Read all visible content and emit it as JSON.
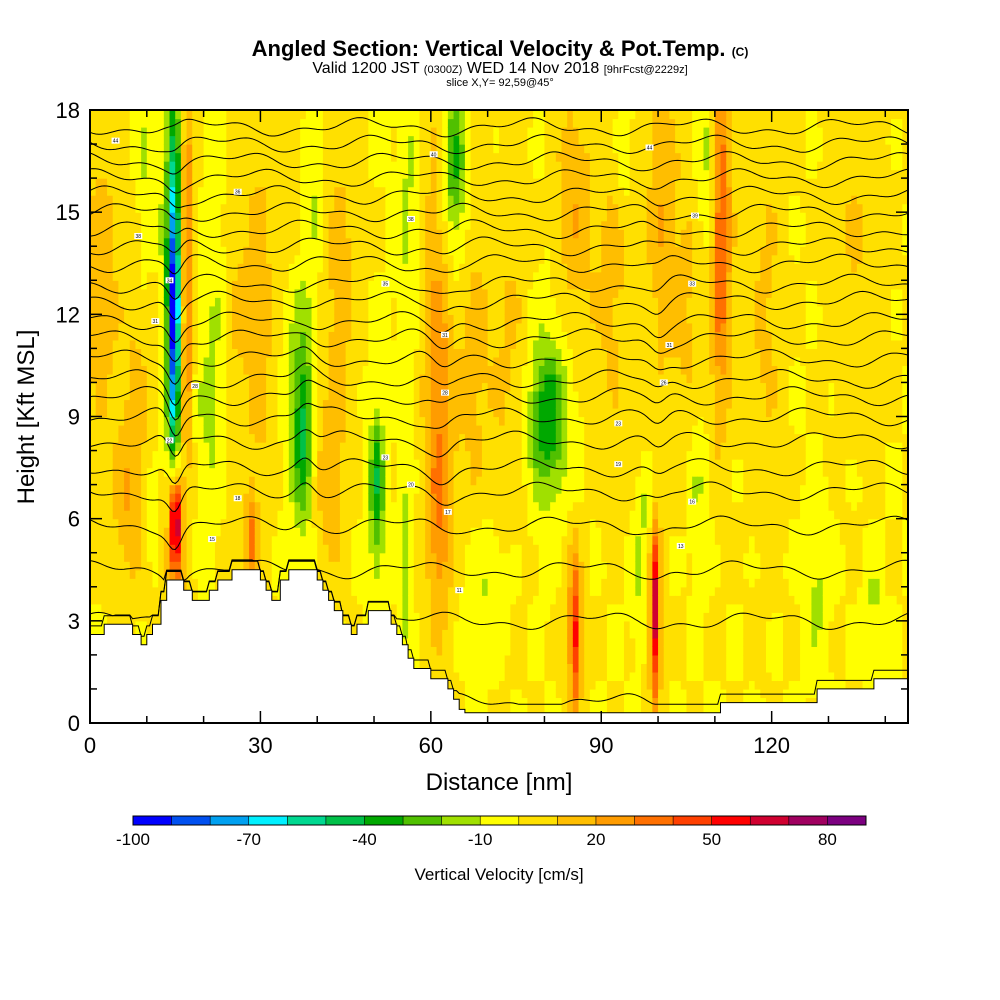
{
  "title": {
    "main": "Angled Section: Vertical Velocity & Pot.Temp.",
    "main_unit": "(C)",
    "valid_prefix": "Valid 1200 JST",
    "valid_utc": "(0300Z)",
    "valid_date": "WED 14 Nov 2018",
    "valid_fcst": "[9hrFcst@2229z]",
    "slice": "slice X,Y= 92,59@45°"
  },
  "chart_data": {
    "type": "heatmap",
    "xlabel": "Distance [nm]",
    "ylabel": "Height [Kft MSL]",
    "xlim": [
      0,
      144
    ],
    "ylim": [
      0,
      18
    ],
    "x_ticks": [
      0,
      30,
      60,
      90,
      120
    ],
    "y_ticks": [
      0,
      3,
      6,
      9,
      12,
      15,
      18
    ],
    "x_tick_labels": [
      "0",
      "30",
      "60",
      "90",
      "120"
    ],
    "y_tick_labels": [
      "0",
      "3",
      "6",
      "9",
      "12",
      "15",
      "18"
    ],
    "colorbar": {
      "title": "Vertical Velocity [cm/s]",
      "levels": [
        -100,
        -90,
        -80,
        -70,
        -60,
        -50,
        -40,
        -30,
        -20,
        -10,
        0,
        10,
        20,
        30,
        40,
        50,
        60,
        70,
        80,
        90
      ],
      "labels": [
        "-100",
        "-70",
        "-40",
        "-10",
        "20",
        "50",
        "80"
      ],
      "label_values": [
        -100,
        -70,
        -40,
        -10,
        20,
        50,
        80
      ],
      "colors": [
        "#0000ff",
        "#0050f0",
        "#00a0f0",
        "#00f0ff",
        "#00d890",
        "#00c048",
        "#00a800",
        "#50c000",
        "#a0e000",
        "#ffff00",
        "#ffe000",
        "#ffbe00",
        "#ff9c00",
        "#ff7000",
        "#ff4000",
        "#ff0000",
        "#d00030",
        "#a00060",
        "#7c0080"
      ]
    },
    "background_value": 0,
    "velocity_features": [
      {
        "x": 15,
        "z": 6,
        "rx": 0.7,
        "rz": 1.2,
        "v": 55
      },
      {
        "x": 15,
        "z": 6,
        "rx": 1.2,
        "rz": 2.2,
        "v": 35
      },
      {
        "x": 15,
        "z": 5,
        "rx": 2.5,
        "rz": 2.8,
        "v": 18
      },
      {
        "x": 14.8,
        "z": 12,
        "rx": 0.8,
        "rz": 4.5,
        "v": -60
      },
      {
        "x": 14.8,
        "z": 12.5,
        "rx": 1.6,
        "rz": 6,
        "v": -35
      },
      {
        "x": 14.5,
        "z": 13,
        "rx": 2.5,
        "rz": 7,
        "v": -12
      },
      {
        "x": 17,
        "z": 15,
        "rx": 1.3,
        "rz": 4,
        "v": 35
      },
      {
        "x": 17,
        "z": 10,
        "rx": 1.2,
        "rz": 3,
        "v": 25
      },
      {
        "x": 7,
        "z": 6.5,
        "rx": 3,
        "rz": 2.5,
        "v": 18
      },
      {
        "x": 2,
        "z": 13,
        "rx": 3,
        "rz": 5,
        "v": 16
      },
      {
        "x": 9,
        "z": 11,
        "rx": 3,
        "rz": 4,
        "v": 14
      },
      {
        "x": 9.5,
        "z": 15,
        "rx": 1.5,
        "rz": 5,
        "v": -12
      },
      {
        "x": 11,
        "z": 6.5,
        "rx": 1.3,
        "rz": 1.8,
        "v": -12
      },
      {
        "x": 23,
        "z": 13,
        "rx": 2.5,
        "rz": 5,
        "v": -12
      },
      {
        "x": 21,
        "z": 9,
        "rx": 3,
        "rz": 3.5,
        "v": -10
      },
      {
        "x": 25,
        "z": 12,
        "rx": 3,
        "rz": 6,
        "v": 14
      },
      {
        "x": 28.5,
        "z": 5.3,
        "rx": 1,
        "rz": 1.3,
        "v": 32
      },
      {
        "x": 30,
        "z": 12,
        "rx": 2.5,
        "rz": 6,
        "v": 15
      },
      {
        "x": 37.5,
        "z": 8.6,
        "rx": 1.6,
        "rz": 2.3,
        "v": -30
      },
      {
        "x": 37,
        "z": 10,
        "rx": 2.5,
        "rz": 5,
        "v": -15
      },
      {
        "x": 39,
        "z": 16,
        "rx": 2,
        "rz": 3,
        "v": -12
      },
      {
        "x": 36,
        "z": 16,
        "rx": 2.5,
        "rz": 3,
        "v": 14
      },
      {
        "x": 42,
        "z": 7,
        "rx": 2.5,
        "rz": 3,
        "v": 15
      },
      {
        "x": 44,
        "z": 13,
        "rx": 3,
        "rz": 5,
        "v": 14
      },
      {
        "x": 50.5,
        "z": 7.2,
        "rx": 1.2,
        "rz": 2,
        "v": -28
      },
      {
        "x": 50.5,
        "z": 6,
        "rx": 1.8,
        "rz": 3,
        "v": -12
      },
      {
        "x": 55.5,
        "z": 4.5,
        "rx": 1,
        "rz": 3,
        "v": -18
      },
      {
        "x": 56,
        "z": 15,
        "rx": 2,
        "rz": 5,
        "v": -12
      },
      {
        "x": 61.5,
        "z": 11.5,
        "rx": 3,
        "rz": 7,
        "v": 26
      },
      {
        "x": 61.5,
        "z": 6,
        "rx": 2,
        "rz": 3,
        "v": 18
      },
      {
        "x": 64,
        "z": 16.5,
        "rx": 2,
        "rz": 2.5,
        "v": -28
      },
      {
        "x": 64,
        "z": 15,
        "rx": 3,
        "rz": 4,
        "v": -12
      },
      {
        "x": 67.5,
        "z": 11,
        "rx": 3,
        "rz": 5,
        "v": 14
      },
      {
        "x": 70,
        "z": 4,
        "rx": 4,
        "rz": 2,
        "v": -12
      },
      {
        "x": 74,
        "z": 10.5,
        "rx": 3.5,
        "rz": 6,
        "v": 12
      },
      {
        "x": 80.5,
        "z": 9,
        "rx": 3,
        "rz": 2,
        "v": -28
      },
      {
        "x": 81,
        "z": 9,
        "rx": 5,
        "rz": 3.5,
        "v": -12
      },
      {
        "x": 85.5,
        "z": 2.5,
        "rx": 0.8,
        "rz": 2,
        "v": 38
      },
      {
        "x": 85,
        "z": 3,
        "rx": 1.8,
        "rz": 3,
        "v": 18
      },
      {
        "x": 85,
        "z": 15,
        "rx": 3,
        "rz": 4,
        "v": 18
      },
      {
        "x": 92,
        "z": 13,
        "rx": 4,
        "rz": 5,
        "v": 13
      },
      {
        "x": 94,
        "z": 17,
        "rx": 1.5,
        "rz": 2,
        "v": -12
      },
      {
        "x": 99.5,
        "z": 3.2,
        "rx": 0.7,
        "rz": 2.4,
        "v": 48
      },
      {
        "x": 99.5,
        "z": 3.5,
        "rx": 1.5,
        "rz": 3.2,
        "v": 20
      },
      {
        "x": 100.5,
        "z": 15,
        "rx": 2.5,
        "rz": 5,
        "v": 18
      },
      {
        "x": 98,
        "z": 6.5,
        "rx": 1.6,
        "rz": 1.2,
        "v": -12
      },
      {
        "x": 97,
        "z": 4,
        "rx": 1.5,
        "rz": 2,
        "v": -12
      },
      {
        "x": 107,
        "z": 7,
        "rx": 2,
        "rz": 2.5,
        "v": -12
      },
      {
        "x": 109,
        "z": 16.5,
        "rx": 2,
        "rz": 3,
        "v": -20
      },
      {
        "x": 111,
        "z": 15,
        "rx": 1.5,
        "rz": 5,
        "v": 30
      },
      {
        "x": 111,
        "z": 14,
        "rx": 2.5,
        "rz": 6,
        "v": 15
      },
      {
        "x": 105,
        "z": 12,
        "rx": 3,
        "rz": 5,
        "v": 12
      },
      {
        "x": 119,
        "z": 12,
        "rx": 3,
        "rz": 6,
        "v": 12
      },
      {
        "x": 128,
        "z": 4,
        "rx": 2,
        "rz": 2.5,
        "v": -12
      },
      {
        "x": 138,
        "z": 3.5,
        "rx": 1.5,
        "rz": 1.5,
        "v": -12
      },
      {
        "x": 135,
        "z": 14,
        "rx": 5,
        "rz": 5,
        "v": 10
      }
    ],
    "isentrope_heights": [
      0.6,
      3.0,
      4.5,
      5.8,
      6.8,
      7.5,
      8.3,
      9.0,
      9.6,
      10.1,
      10.7,
      11.3,
      11.8,
      12.4,
      12.9,
      13.5,
      14.0,
      14.5,
      15.0,
      15.5,
      16.0,
      16.5,
      17.0,
      17.5
    ],
    "contour_labels": [
      {
        "x": 4.5,
        "z": 17.1,
        "text": "44"
      },
      {
        "x": 26,
        "z": 15.6,
        "text": "36"
      },
      {
        "x": 60.5,
        "z": 16.7,
        "text": "40"
      },
      {
        "x": 98.5,
        "z": 16.9,
        "text": "44"
      },
      {
        "x": 8.5,
        "z": 14.3,
        "text": "38"
      },
      {
        "x": 56.5,
        "z": 14.8,
        "text": "38"
      },
      {
        "x": 106.5,
        "z": 14.9,
        "text": "39"
      },
      {
        "x": 14,
        "z": 13,
        "text": "34"
      },
      {
        "x": 52,
        "z": 12.9,
        "text": "35"
      },
      {
        "x": 106,
        "z": 12.9,
        "text": "33"
      },
      {
        "x": 11.5,
        "z": 11.8,
        "text": "31"
      },
      {
        "x": 62.5,
        "z": 11.4,
        "text": "31"
      },
      {
        "x": 102,
        "z": 11.1,
        "text": "31"
      },
      {
        "x": 18.5,
        "z": 9.9,
        "text": "28"
      },
      {
        "x": 62.5,
        "z": 9.7,
        "text": "28"
      },
      {
        "x": 101,
        "z": 10.0,
        "text": "26"
      },
      {
        "x": 14,
        "z": 8.3,
        "text": "22"
      },
      {
        "x": 52,
        "z": 7.8,
        "text": "23"
      },
      {
        "x": 93,
        "z": 8.8,
        "text": "23"
      },
      {
        "x": 26,
        "z": 6.6,
        "text": "18"
      },
      {
        "x": 56.5,
        "z": 7.0,
        "text": "20"
      },
      {
        "x": 93,
        "z": 7.6,
        "text": "19"
      },
      {
        "x": 63,
        "z": 6.2,
        "text": "17"
      },
      {
        "x": 106,
        "z": 6.5,
        "text": "16"
      },
      {
        "x": 21.5,
        "z": 5.4,
        "text": "15"
      },
      {
        "x": 104,
        "z": 5.2,
        "text": "13"
      },
      {
        "x": 65,
        "z": 3.9,
        "text": "11"
      }
    ],
    "terrain": [
      [
        0,
        2.6
      ],
      [
        2.5,
        2.6
      ],
      [
        2.5,
        2.9
      ],
      [
        7.5,
        2.9
      ],
      [
        7.5,
        2.6
      ],
      [
        9,
        2.6
      ],
      [
        9,
        2.3
      ],
      [
        10,
        2.3
      ],
      [
        10,
        2.6
      ],
      [
        11,
        2.6
      ],
      [
        11,
        2.9
      ],
      [
        12.5,
        2.9
      ],
      [
        12.5,
        3.6
      ],
      [
        13.5,
        3.6
      ],
      [
        13.5,
        4.2
      ],
      [
        16.5,
        4.2
      ],
      [
        16.5,
        3.9
      ],
      [
        18,
        3.9
      ],
      [
        18,
        3.6
      ],
      [
        21,
        3.6
      ],
      [
        21,
        3.9
      ],
      [
        22.5,
        3.9
      ],
      [
        22.5,
        4.2
      ],
      [
        25,
        4.2
      ],
      [
        25,
        4.5
      ],
      [
        30,
        4.5
      ],
      [
        30,
        4.2
      ],
      [
        31,
        4.2
      ],
      [
        31,
        3.9
      ],
      [
        32,
        3.9
      ],
      [
        32,
        3.6
      ],
      [
        33.5,
        3.6
      ],
      [
        33.5,
        4.2
      ],
      [
        35,
        4.2
      ],
      [
        35,
        4.5
      ],
      [
        40,
        4.5
      ],
      [
        40,
        4.2
      ],
      [
        41,
        4.2
      ],
      [
        41,
        3.9
      ],
      [
        42,
        3.9
      ],
      [
        42,
        3.6
      ],
      [
        43,
        3.6
      ],
      [
        43,
        3.3
      ],
      [
        44.5,
        3.3
      ],
      [
        44.5,
        2.9
      ],
      [
        46,
        2.9
      ],
      [
        46,
        2.6
      ],
      [
        47,
        2.6
      ],
      [
        47,
        2.9
      ],
      [
        49,
        2.9
      ],
      [
        49,
        3.3
      ],
      [
        53,
        3.3
      ],
      [
        53,
        2.9
      ],
      [
        54,
        2.9
      ],
      [
        54,
        2.6
      ],
      [
        55,
        2.6
      ],
      [
        55,
        2.3
      ],
      [
        56,
        2.3
      ],
      [
        56,
        1.9
      ],
      [
        57,
        1.9
      ],
      [
        57,
        1.6
      ],
      [
        60,
        1.6
      ],
      [
        60,
        1.3
      ],
      [
        63,
        1.3
      ],
      [
        63,
        1.0
      ],
      [
        64,
        1.0
      ],
      [
        64,
        0.7
      ],
      [
        65,
        0.7
      ],
      [
        65,
        0.4
      ],
      [
        66,
        0.4
      ],
      [
        66,
        0.3
      ],
      [
        111,
        0.3
      ],
      [
        111,
        0.6
      ],
      [
        128,
        0.6
      ],
      [
        128,
        1.0
      ],
      [
        138,
        1.0
      ],
      [
        138,
        1.3
      ],
      [
        144,
        1.3
      ]
    ]
  }
}
